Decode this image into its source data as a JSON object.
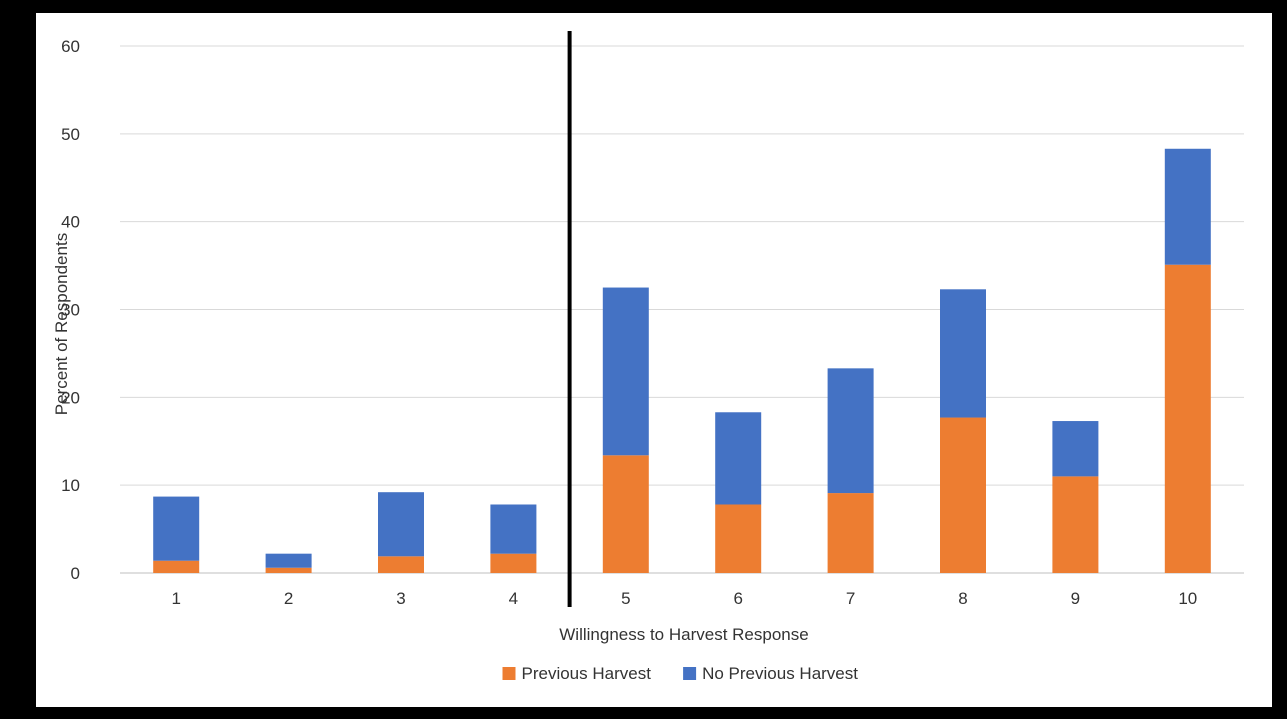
{
  "chart_data": {
    "type": "bar",
    "stacked": true,
    "title": "",
    "xlabel": "Willingness to Harvest Response",
    "ylabel": "Percent of Respondents",
    "ylim": [
      0,
      60
    ],
    "yticks": [
      0,
      10,
      20,
      30,
      40,
      50,
      60
    ],
    "grid": true,
    "legend_position": "bottom",
    "categories": [
      "1",
      "2",
      "3",
      "4",
      "5",
      "6",
      "7",
      "8",
      "9",
      "10"
    ],
    "series": [
      {
        "name": "Previous Harvest",
        "color": "#ED7D31",
        "values": [
          1.4,
          0.6,
          1.9,
          2.2,
          13.4,
          7.8,
          9.1,
          17.7,
          11.0,
          35.1
        ]
      },
      {
        "name": "No Previous Harvest",
        "color": "#4472C4",
        "values": [
          7.3,
          1.6,
          7.3,
          5.6,
          19.1,
          10.5,
          14.2,
          14.6,
          6.3,
          13.2
        ]
      }
    ],
    "divider_after_category": "4",
    "divider_color": "#000000"
  }
}
